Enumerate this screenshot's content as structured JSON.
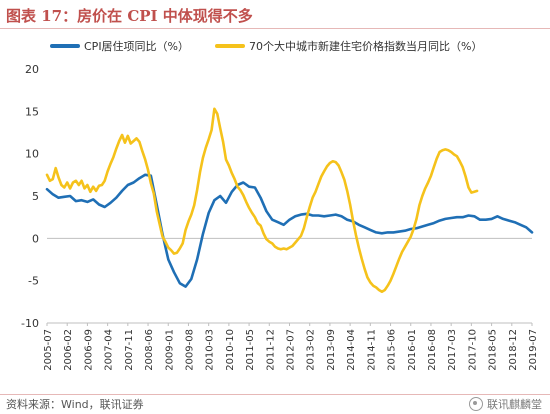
{
  "title": "图表 17：房价在 CPI 中体现得不多",
  "source": "资料来源：Wind，联讯证券",
  "watermark": "联讯麒麟堂",
  "colors": {
    "series1": "#1f6fb5",
    "series2": "#f5c21b",
    "title": "#c0504d"
  },
  "chart_data": {
    "type": "line",
    "title": "",
    "xlabel": "",
    "ylabel": "",
    "ylim": [
      -10,
      20
    ],
    "yticks": [
      -10,
      -5,
      0,
      5,
      10,
      15,
      20
    ],
    "x_start": "2005-07",
    "x_end": "2019-07",
    "xticks": [
      "2005-07",
      "2006-02",
      "2006-09",
      "2007-04",
      "2007-11",
      "2008-06",
      "2009-01",
      "2009-08",
      "2010-03",
      "2010-10",
      "2011-05",
      "2011-12",
      "2012-07",
      "2013-02",
      "2013-09",
      "2014-04",
      "2014-11",
      "2015-06",
      "2016-01",
      "2016-08",
      "2017-03",
      "2017-10",
      "2018-05",
      "2018-12",
      "2019-07"
    ],
    "grid": false,
    "legend": "top",
    "series": [
      {
        "name": "CPI居住项同比（%）",
        "color": "#1f6fb5",
        "points": [
          [
            "2005-07",
            5.8
          ],
          [
            "2005-09",
            5.2
          ],
          [
            "2005-11",
            4.8
          ],
          [
            "2006-01",
            4.9
          ],
          [
            "2006-03",
            5.0
          ],
          [
            "2006-05",
            4.4
          ],
          [
            "2006-07",
            4.5
          ],
          [
            "2006-09",
            4.3
          ],
          [
            "2006-11",
            4.6
          ],
          [
            "2007-01",
            4.0
          ],
          [
            "2007-03",
            3.7
          ],
          [
            "2007-05",
            4.2
          ],
          [
            "2007-07",
            4.8
          ],
          [
            "2007-09",
            5.6
          ],
          [
            "2007-11",
            6.3
          ],
          [
            "2008-01",
            6.6
          ],
          [
            "2008-03",
            7.1
          ],
          [
            "2008-05",
            7.5
          ],
          [
            "2008-07",
            7.4
          ],
          [
            "2008-09",
            4.0
          ],
          [
            "2008-11",
            0.5
          ],
          [
            "2009-01",
            -2.5
          ],
          [
            "2009-03",
            -4.0
          ],
          [
            "2009-05",
            -5.3
          ],
          [
            "2009-07",
            -5.7
          ],
          [
            "2009-09",
            -4.8
          ],
          [
            "2009-11",
            -2.5
          ],
          [
            "2010-01",
            0.5
          ],
          [
            "2010-03",
            3.0
          ],
          [
            "2010-05",
            4.5
          ],
          [
            "2010-07",
            5.0
          ],
          [
            "2010-09",
            4.2
          ],
          [
            "2010-11",
            5.5
          ],
          [
            "2011-01",
            6.3
          ],
          [
            "2011-03",
            6.6
          ],
          [
            "2011-05",
            6.1
          ],
          [
            "2011-07",
            6.0
          ],
          [
            "2011-09",
            4.8
          ],
          [
            "2011-11",
            3.2
          ],
          [
            "2012-01",
            2.2
          ],
          [
            "2012-03",
            1.9
          ],
          [
            "2012-05",
            1.6
          ],
          [
            "2012-07",
            2.2
          ],
          [
            "2012-09",
            2.6
          ],
          [
            "2012-11",
            2.8
          ],
          [
            "2013-01",
            2.9
          ],
          [
            "2013-03",
            2.7
          ],
          [
            "2013-05",
            2.7
          ],
          [
            "2013-07",
            2.6
          ],
          [
            "2013-09",
            2.7
          ],
          [
            "2013-11",
            2.8
          ],
          [
            "2014-01",
            2.6
          ],
          [
            "2014-03",
            2.2
          ],
          [
            "2014-05",
            2.0
          ],
          [
            "2014-07",
            1.6
          ],
          [
            "2014-09",
            1.3
          ],
          [
            "2014-11",
            1.0
          ],
          [
            "2015-01",
            0.7
          ],
          [
            "2015-03",
            0.6
          ],
          [
            "2015-05",
            0.7
          ],
          [
            "2015-07",
            0.7
          ],
          [
            "2015-09",
            0.8
          ],
          [
            "2015-11",
            0.9
          ],
          [
            "2016-01",
            1.1
          ],
          [
            "2016-03",
            1.2
          ],
          [
            "2016-05",
            1.4
          ],
          [
            "2016-07",
            1.6
          ],
          [
            "2016-09",
            1.8
          ],
          [
            "2016-11",
            2.1
          ],
          [
            "2017-01",
            2.3
          ],
          [
            "2017-03",
            2.4
          ],
          [
            "2017-05",
            2.5
          ],
          [
            "2017-07",
            2.5
          ],
          [
            "2017-09",
            2.7
          ],
          [
            "2017-11",
            2.6
          ],
          [
            "2018-01",
            2.2
          ],
          [
            "2018-03",
            2.2
          ],
          [
            "2018-05",
            2.3
          ],
          [
            "2018-07",
            2.6
          ],
          [
            "2018-09",
            2.3
          ],
          [
            "2018-11",
            2.1
          ],
          [
            "2019-01",
            1.9
          ],
          [
            "2019-03",
            1.6
          ],
          [
            "2019-05",
            1.3
          ],
          [
            "2019-07",
            0.7
          ]
        ]
      },
      {
        "name": "70个大中城市新建住宅价格指数当月同比（%）",
        "color": "#f5c21b",
        "points": [
          [
            "2005-07",
            7.5
          ],
          [
            "2005-08",
            6.8
          ],
          [
            "2005-09",
            7.0
          ],
          [
            "2005-10",
            8.3
          ],
          [
            "2005-11",
            7.2
          ],
          [
            "2005-12",
            6.3
          ],
          [
            "2006-01",
            6.0
          ],
          [
            "2006-02",
            6.6
          ],
          [
            "2006-03",
            5.9
          ],
          [
            "2006-04",
            6.6
          ],
          [
            "2006-05",
            6.8
          ],
          [
            "2006-06",
            6.3
          ],
          [
            "2006-07",
            6.8
          ],
          [
            "2006-08",
            5.9
          ],
          [
            "2006-09",
            6.3
          ],
          [
            "2006-10",
            5.5
          ],
          [
            "2006-11",
            6.1
          ],
          [
            "2006-12",
            5.6
          ],
          [
            "2007-01",
            6.2
          ],
          [
            "2007-02",
            6.3
          ],
          [
            "2007-03",
            6.8
          ],
          [
            "2007-04",
            7.9
          ],
          [
            "2007-05",
            8.8
          ],
          [
            "2007-06",
            9.6
          ],
          [
            "2007-07",
            10.6
          ],
          [
            "2007-08",
            11.5
          ],
          [
            "2007-09",
            12.2
          ],
          [
            "2007-10",
            11.3
          ],
          [
            "2007-11",
            12.1
          ],
          [
            "2007-12",
            11.2
          ],
          [
            "2008-01",
            11.5
          ],
          [
            "2008-02",
            11.8
          ],
          [
            "2008-03",
            11.4
          ],
          [
            "2008-04",
            10.3
          ],
          [
            "2008-05",
            9.3
          ],
          [
            "2008-06",
            8.1
          ],
          [
            "2008-07",
            6.5
          ],
          [
            "2008-08",
            5.3
          ],
          [
            "2008-09",
            3.2
          ],
          [
            "2008-10",
            1.7
          ],
          [
            "2008-11",
            0.2
          ],
          [
            "2008-12",
            -0.4
          ],
          [
            "2009-01",
            -1.1
          ],
          [
            "2009-02",
            -1.4
          ],
          [
            "2009-03",
            -1.8
          ],
          [
            "2009-04",
            -1.7
          ],
          [
            "2009-05",
            -1.2
          ],
          [
            "2009-06",
            -0.6
          ],
          [
            "2009-07",
            1.0
          ],
          [
            "2009-08",
            2.0
          ],
          [
            "2009-09",
            2.8
          ],
          [
            "2009-10",
            3.9
          ],
          [
            "2009-11",
            5.7
          ],
          [
            "2009-12",
            7.8
          ],
          [
            "2010-01",
            9.5
          ],
          [
            "2010-02",
            10.7
          ],
          [
            "2010-03",
            11.7
          ],
          [
            "2010-04",
            12.8
          ],
          [
            "2010-05",
            15.3
          ],
          [
            "2010-06",
            14.7
          ],
          [
            "2010-07",
            13.0
          ],
          [
            "2010-08",
            11.4
          ],
          [
            "2010-09",
            9.3
          ],
          [
            "2010-10",
            8.6
          ],
          [
            "2010-11",
            7.7
          ],
          [
            "2010-12",
            7.0
          ],
          [
            "2011-01",
            6.1
          ],
          [
            "2011-02",
            5.7
          ],
          [
            "2011-03",
            5.1
          ],
          [
            "2011-04",
            4.3
          ],
          [
            "2011-05",
            3.6
          ],
          [
            "2011-06",
            3.0
          ],
          [
            "2011-07",
            2.5
          ],
          [
            "2011-08",
            1.8
          ],
          [
            "2011-09",
            1.5
          ],
          [
            "2011-10",
            0.6
          ],
          [
            "2011-11",
            -0.1
          ],
          [
            "2011-12",
            -0.4
          ],
          [
            "2012-01",
            -0.6
          ],
          [
            "2012-02",
            -1.0
          ],
          [
            "2012-03",
            -1.2
          ],
          [
            "2012-04",
            -1.3
          ],
          [
            "2012-05",
            -1.2
          ],
          [
            "2012-06",
            -1.3
          ],
          [
            "2012-07",
            -1.1
          ],
          [
            "2012-08",
            -0.9
          ],
          [
            "2012-09",
            -0.5
          ],
          [
            "2012-10",
            -0.1
          ],
          [
            "2012-11",
            0.3
          ],
          [
            "2012-12",
            1.2
          ],
          [
            "2013-01",
            2.5
          ],
          [
            "2013-02",
            3.7
          ],
          [
            "2013-03",
            4.8
          ],
          [
            "2013-04",
            5.5
          ],
          [
            "2013-05",
            6.4
          ],
          [
            "2013-06",
            7.3
          ],
          [
            "2013-07",
            7.9
          ],
          [
            "2013-08",
            8.5
          ],
          [
            "2013-09",
            8.9
          ],
          [
            "2013-10",
            9.1
          ],
          [
            "2013-11",
            9.0
          ],
          [
            "2013-12",
            8.6
          ],
          [
            "2014-01",
            7.8
          ],
          [
            "2014-02",
            6.9
          ],
          [
            "2014-03",
            5.6
          ],
          [
            "2014-04",
            4.0
          ],
          [
            "2014-05",
            2.1
          ],
          [
            "2014-06",
            0.4
          ],
          [
            "2014-07",
            -1.1
          ],
          [
            "2014-08",
            -2.4
          ],
          [
            "2014-09",
            -3.6
          ],
          [
            "2014-10",
            -4.6
          ],
          [
            "2014-11",
            -5.2
          ],
          [
            "2014-12",
            -5.6
          ],
          [
            "2015-01",
            -5.8
          ],
          [
            "2015-02",
            -6.1
          ],
          [
            "2015-03",
            -6.3
          ],
          [
            "2015-04",
            -6.1
          ],
          [
            "2015-05",
            -5.6
          ],
          [
            "2015-06",
            -5.0
          ],
          [
            "2015-07",
            -4.2
          ],
          [
            "2015-08",
            -3.3
          ],
          [
            "2015-09",
            -2.4
          ],
          [
            "2015-10",
            -1.6
          ],
          [
            "2015-11",
            -1.0
          ],
          [
            "2015-12",
            -0.4
          ],
          [
            "2016-01",
            0.2
          ],
          [
            "2016-02",
            1.1
          ],
          [
            "2016-03",
            2.3
          ],
          [
            "2016-04",
            3.9
          ],
          [
            "2016-05",
            5.0
          ],
          [
            "2016-06",
            5.9
          ],
          [
            "2016-07",
            6.6
          ],
          [
            "2016-08",
            7.4
          ],
          [
            "2016-09",
            8.4
          ],
          [
            "2016-10",
            9.4
          ],
          [
            "2016-11",
            10.2
          ],
          [
            "2016-12",
            10.4
          ],
          [
            "2017-01",
            10.5
          ],
          [
            "2017-02",
            10.4
          ],
          [
            "2017-03",
            10.2
          ],
          [
            "2017-04",
            9.9
          ],
          [
            "2017-05",
            9.7
          ],
          [
            "2017-06",
            9.1
          ],
          [
            "2017-07",
            8.4
          ],
          [
            "2017-08",
            7.3
          ],
          [
            "2017-09",
            6.0
          ],
          [
            "2017-10",
            5.4
          ],
          [
            "2017-11",
            5.5
          ],
          [
            "2017-12",
            5.6
          ]
        ]
      }
    ]
  }
}
